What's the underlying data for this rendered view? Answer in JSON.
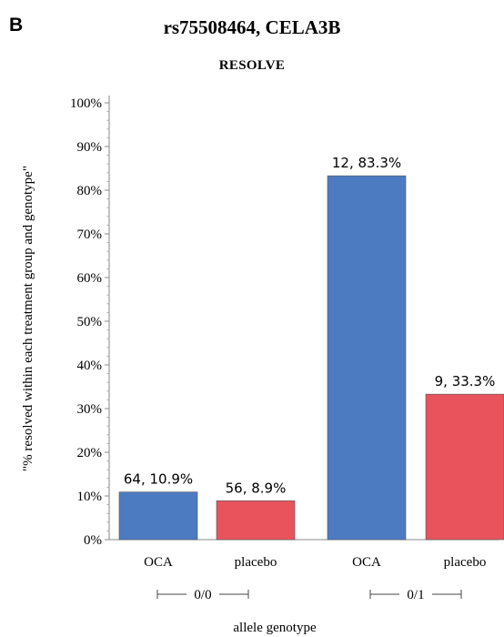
{
  "panel_label": "B",
  "chart_data": {
    "type": "bar",
    "title": "rs75508464, CELA3B",
    "subtitle": "RESOLVE",
    "ylabel": "\"% resolved within each treatment group and genotype\"",
    "xlabel": "allele genotype",
    "ylim": [
      0,
      100
    ],
    "yticks": [
      "0%",
      "10%",
      "20%",
      "30%",
      "40%",
      "50%",
      "60%",
      "70%",
      "80%",
      "90%",
      "100%"
    ],
    "groups": [
      {
        "name": "0/0",
        "bars": [
          {
            "label": "OCA",
            "value": 10.9,
            "data_label": "64, 10.9%",
            "color": "#4c7bc1"
          },
          {
            "label": "placebo",
            "value": 8.9,
            "data_label": "56, 8.9%",
            "color": "#e8535c"
          }
        ]
      },
      {
        "name": "0/1",
        "bars": [
          {
            "label": "OCA",
            "value": 83.3,
            "data_label": "12, 83.3%",
            "color": "#4c7bc1"
          },
          {
            "label": "placebo",
            "value": 33.3,
            "data_label": "9, 33.3%",
            "color": "#e8535c"
          }
        ]
      }
    ],
    "grid": false
  }
}
